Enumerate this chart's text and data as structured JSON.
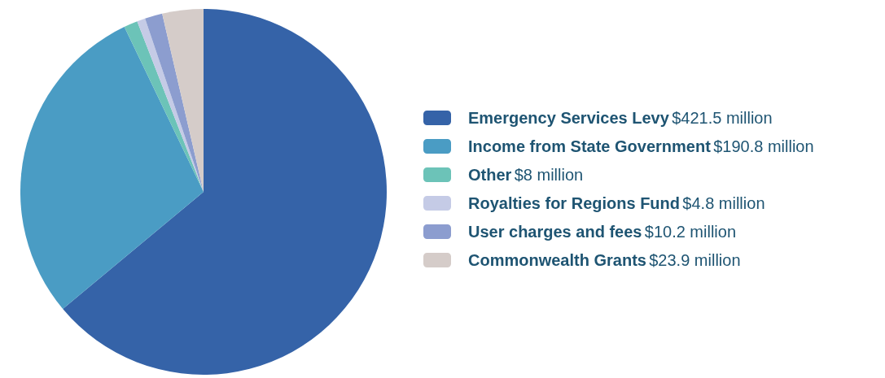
{
  "chart_data": {
    "type": "pie",
    "categories": [
      "Emergency Services Levy",
      "Income from State Government",
      "Other",
      "Royalties for Regions Fund",
      "User charges and fees",
      "Commonwealth Grants"
    ],
    "values": [
      421.5,
      190.8,
      8,
      4.8,
      10.2,
      23.9
    ],
    "value_labels": [
      "$421.5 million",
      "$190.8 million",
      "$8 million",
      "$4.8 million",
      "$10.2 million",
      "$23.9 million"
    ],
    "colors": [
      "#3563a8",
      "#4a9cc4",
      "#6cc3b8",
      "#c5cbe6",
      "#8c9dcf",
      "#d5ccc9"
    ],
    "legend": "right"
  }
}
